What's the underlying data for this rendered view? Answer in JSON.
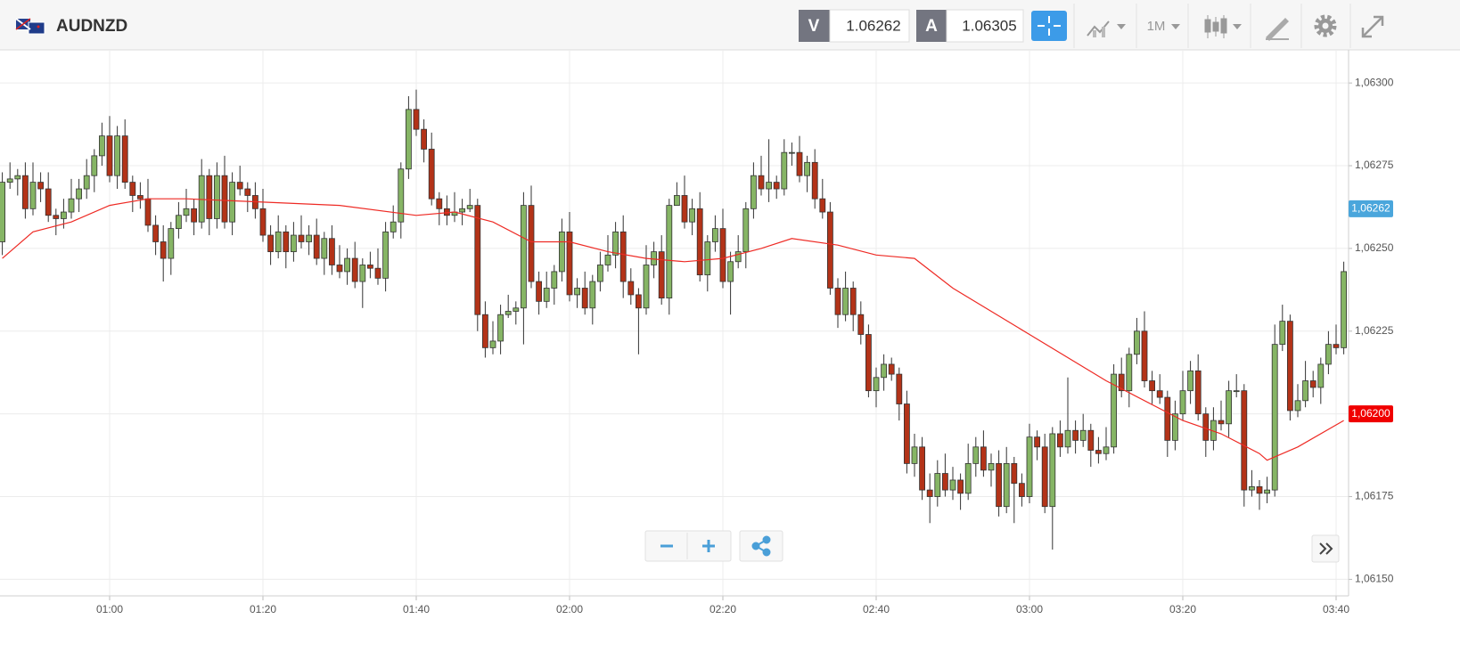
{
  "header": {
    "symbol": "AUDNZD",
    "bid_label": "V",
    "bid": 1.06262,
    "ask_label": "A",
    "ask": 1.06305,
    "timeframe": "1M"
  },
  "chart_data": {
    "type": "candlestick",
    "x": [
      "00:46",
      "00:47",
      "00:48",
      "00:49",
      "00:50",
      "00:51",
      "00:52",
      "00:53",
      "00:54",
      "00:55",
      "00:56",
      "00:57",
      "00:58",
      "00:59",
      "01:00",
      "01:01",
      "01:02",
      "01:03",
      "01:04",
      "01:05",
      "01:06",
      "01:07",
      "01:08",
      "01:09",
      "01:10",
      "01:11",
      "01:12",
      "01:13",
      "01:14",
      "01:15",
      "01:16",
      "01:17",
      "01:18",
      "01:19",
      "01:20",
      "01:21",
      "01:22",
      "01:23",
      "01:24",
      "01:25",
      "01:26",
      "01:27",
      "01:28",
      "01:29",
      "01:30",
      "01:31",
      "01:32",
      "01:33",
      "01:34",
      "01:35",
      "01:36",
      "01:37",
      "01:38",
      "01:39",
      "01:40",
      "01:41",
      "01:42",
      "01:43",
      "01:44",
      "01:45",
      "01:46",
      "01:47",
      "01:48",
      "01:49",
      "01:50",
      "01:51",
      "01:52",
      "01:53",
      "01:54",
      "01:55",
      "01:56",
      "01:57",
      "01:58",
      "01:59",
      "02:00",
      "02:01",
      "02:02",
      "02:03",
      "02:04",
      "02:05",
      "02:06",
      "02:07",
      "02:08",
      "02:09",
      "02:10",
      "02:11",
      "02:12",
      "02:13",
      "02:14",
      "02:15",
      "02:16",
      "02:17",
      "02:18",
      "02:19",
      "02:20",
      "02:21",
      "02:22",
      "02:23",
      "02:24",
      "02:25",
      "02:26",
      "02:27",
      "02:28",
      "02:29",
      "02:30",
      "02:31",
      "02:32",
      "02:33",
      "02:34",
      "02:35",
      "02:36",
      "02:37",
      "02:38",
      "02:39",
      "02:40",
      "02:41",
      "02:42",
      "02:43",
      "02:44",
      "02:45",
      "02:46",
      "02:47",
      "02:48",
      "02:49",
      "02:50",
      "02:51",
      "02:52",
      "02:53",
      "02:54",
      "02:55",
      "02:56",
      "02:57",
      "02:58",
      "02:59",
      "03:00",
      "03:01",
      "03:02",
      "03:03",
      "03:04",
      "03:05",
      "03:06",
      "03:07",
      "03:08",
      "03:09",
      "03:10",
      "03:11",
      "03:12",
      "03:13",
      "03:14",
      "03:15",
      "03:16",
      "03:17",
      "03:18",
      "03:19",
      "03:20",
      "03:21",
      "03:22",
      "03:23",
      "03:24",
      "03:25",
      "03:26",
      "03:27",
      "03:28",
      "03:29",
      "03:30",
      "03:31",
      "03:32",
      "03:33",
      "03:34",
      "03:35",
      "03:36",
      "03:37",
      "03:38",
      "03:39",
      "03:40",
      "03:41"
    ],
    "open": [
      1.06252,
      1.0627,
      1.06271,
      1.06272,
      1.06262,
      1.0627,
      1.06268,
      1.0626,
      1.06259,
      1.06261,
      1.06265,
      1.06268,
      1.06272,
      1.06278,
      1.06284,
      1.06272,
      1.06284,
      1.0627,
      1.06266,
      1.06265,
      1.06257,
      1.06252,
      1.06247,
      1.06256,
      1.0626,
      1.06262,
      1.06258,
      1.06272,
      1.06259,
      1.06272,
      1.06258,
      1.0627,
      1.06268,
      1.06266,
      1.06262,
      1.06254,
      1.06249,
      1.06255,
      1.06249,
      1.06254,
      1.06252,
      1.06254,
      1.06247,
      1.06253,
      1.06245,
      1.06243,
      1.06247,
      1.0624,
      1.06245,
      1.06244,
      1.06241,
      1.06255,
      1.06258,
      1.06274,
      1.06292,
      1.06286,
      1.0628,
      1.06265,
      1.06262,
      1.0626,
      1.06261,
      1.06262,
      1.06263,
      1.0623,
      1.0622,
      1.06222,
      1.0623,
      1.06231,
      1.06232,
      1.06263,
      1.0624,
      1.06234,
      1.06238,
      1.06243,
      1.06255,
      1.06236,
      1.06238,
      1.06232,
      1.0624,
      1.06245,
      1.06248,
      1.06255,
      1.0624,
      1.06236,
      1.06232,
      1.06245,
      1.06249,
      1.06235,
      1.06263,
      1.06266,
      1.06258,
      1.06262,
      1.06242,
      1.06252,
      1.06256,
      1.0624,
      1.06246,
      1.06249,
      1.06262,
      1.06272,
      1.06268,
      1.0627,
      1.06268,
      1.06279,
      1.06279,
      1.06272,
      1.06276,
      1.06265,
      1.06261,
      1.06238,
      1.0623,
      1.06238,
      1.0623,
      1.06224,
      1.06207,
      1.06211,
      1.06215,
      1.06212,
      1.06203,
      1.06185,
      1.0619,
      1.06177,
      1.06175,
      1.06182,
      1.06177,
      1.0618,
      1.06176,
      1.06185,
      1.0619,
      1.06183,
      1.06185,
      1.06172,
      1.06185,
      1.06179,
      1.06175,
      1.06193,
      1.0619,
      1.06172,
      1.06194,
      1.0619,
      1.06195,
      1.06192,
      1.06195,
      1.06189,
      1.06188,
      1.0619,
      1.06212,
      1.06207,
      1.06218,
      1.06225,
      1.0621,
      1.06207,
      1.06205,
      1.06192,
      1.062,
      1.06207,
      1.06213,
      1.062,
      1.06192,
      1.06198,
      1.06197,
      1.06207,
      1.06207,
      1.06177,
      1.06178,
      1.06176,
      1.06177,
      1.06221,
      1.06228,
      1.06201,
      1.06204,
      1.0621,
      1.06208,
      1.06215,
      1.06221,
      1.0622
    ],
    "high": [
      1.06273,
      1.06276,
      1.06274,
      1.06276,
      1.06276,
      1.06273,
      1.06273,
      1.06262,
      1.06265,
      1.06271,
      1.06271,
      1.06277,
      1.0628,
      1.06288,
      1.0629,
      1.06287,
      1.06289,
      1.06272,
      1.0627,
      1.06271,
      1.0626,
      1.06257,
      1.06258,
      1.06264,
      1.06268,
      1.06265,
      1.06277,
      1.06274,
      1.06276,
      1.06278,
      1.06273,
      1.06275,
      1.0627,
      1.0627,
      1.06268,
      1.06257,
      1.0626,
      1.06257,
      1.06258,
      1.0626,
      1.06257,
      1.06259,
      1.06255,
      1.06257,
      1.06251,
      1.0625,
      1.06252,
      1.06247,
      1.06249,
      1.0625,
      1.06258,
      1.06263,
      1.06276,
      1.06296,
      1.06298,
      1.06289,
      1.06285,
      1.06267,
      1.06266,
      1.06267,
      1.06265,
      1.06268,
      1.06265,
      1.06234,
      1.06228,
      1.06233,
      1.06236,
      1.06234,
      1.06267,
      1.06269,
      1.06243,
      1.06243,
      1.06245,
      1.06259,
      1.06261,
      1.06241,
      1.06243,
      1.06242,
      1.06249,
      1.06254,
      1.06258,
      1.0626,
      1.06244,
      1.06238,
      1.06251,
      1.06252,
      1.06254,
      1.06265,
      1.0627,
      1.06272,
      1.06265,
      1.06267,
      1.06254,
      1.0626,
      1.06262,
      1.06249,
      1.06254,
      1.06264,
      1.06276,
      1.06278,
      1.06283,
      1.06272,
      1.06283,
      1.06282,
      1.06284,
      1.06278,
      1.0628,
      1.06271,
      1.06264,
      1.06241,
      1.06243,
      1.0624,
      1.06234,
      1.06227,
      1.06214,
      1.06218,
      1.06217,
      1.06214,
      1.06207,
      1.06194,
      1.06193,
      1.06182,
      1.06186,
      1.06188,
      1.06184,
      1.06182,
      1.06191,
      1.06193,
      1.06195,
      1.06188,
      1.06189,
      1.0619,
      1.06187,
      1.06182,
      1.06197,
      1.06195,
      1.06194,
      1.06196,
      1.06198,
      1.06211,
      1.06198,
      1.062,
      1.06197,
      1.06193,
      1.06196,
      1.06215,
      1.06217,
      1.0622,
      1.06229,
      1.06231,
      1.06213,
      1.06212,
      1.06207,
      1.06204,
      1.06213,
      1.06216,
      1.06218,
      1.06202,
      1.06202,
      1.06204,
      1.0621,
      1.06212,
      1.06209,
      1.06183,
      1.0618,
      1.06181,
      1.06227,
      1.06233,
      1.0623,
      1.06209,
      1.06216,
      1.06213,
      1.06217,
      1.06225,
      1.06227,
      1.06246
    ],
    "low": [
      1.06248,
      1.06268,
      1.06266,
      1.06259,
      1.0626,
      1.06264,
      1.06258,
      1.06254,
      1.06256,
      1.06259,
      1.06261,
      1.06265,
      1.06267,
      1.06275,
      1.0627,
      1.06268,
      1.06268,
      1.06261,
      1.06262,
      1.06255,
      1.06248,
      1.0624,
      1.06242,
      1.06253,
      1.06258,
      1.06254,
      1.06256,
      1.06254,
      1.06256,
      1.06256,
      1.06254,
      1.06266,
      1.06261,
      1.06259,
      1.06252,
      1.06245,
      1.06247,
      1.06244,
      1.06246,
      1.0625,
      1.06248,
      1.06245,
      1.06242,
      1.06242,
      1.06241,
      1.06239,
      1.06238,
      1.06232,
      1.06241,
      1.06239,
      1.06237,
      1.06253,
      1.06253,
      1.06271,
      1.06284,
      1.06276,
      1.06263,
      1.06257,
      1.06257,
      1.06258,
      1.06257,
      1.06261,
      1.06225,
      1.06217,
      1.06218,
      1.06218,
      1.06229,
      1.06227,
      1.06221,
      1.06238,
      1.0623,
      1.06232,
      1.06233,
      1.0624,
      1.06234,
      1.06232,
      1.0623,
      1.06227,
      1.06237,
      1.06243,
      1.06244,
      1.06235,
      1.06233,
      1.06218,
      1.0623,
      1.06241,
      1.06233,
      1.0623,
      1.06263,
      1.06256,
      1.06254,
      1.0624,
      1.06237,
      1.06249,
      1.06238,
      1.0623,
      1.06244,
      1.06244,
      1.06259,
      1.06266,
      1.06264,
      1.06265,
      1.06266,
      1.06275,
      1.0627,
      1.06267,
      1.06262,
      1.06259,
      1.06236,
      1.06226,
      1.06228,
      1.06225,
      1.06221,
      1.06205,
      1.06202,
      1.06207,
      1.0621,
      1.06198,
      1.06182,
      1.06181,
      1.06174,
      1.06167,
      1.06172,
      1.06175,
      1.06174,
      1.06171,
      1.06174,
      1.06181,
      1.06181,
      1.06178,
      1.06169,
      1.0617,
      1.06167,
      1.06172,
      1.06173,
      1.06186,
      1.0617,
      1.06159,
      1.06187,
      1.06188,
      1.06188,
      1.0619,
      1.06184,
      1.06185,
      1.06186,
      1.06188,
      1.06205,
      1.06202,
      1.06215,
      1.06208,
      1.06203,
      1.06203,
      1.06187,
      1.06189,
      1.06198,
      1.06203,
      1.06198,
      1.06187,
      1.06189,
      1.06195,
      1.06193,
      1.06205,
      1.06172,
      1.06175,
      1.06171,
      1.06173,
      1.06175,
      1.06219,
      1.06198,
      1.06199,
      1.06202,
      1.06205,
      1.06203,
      1.06212,
      1.06218,
      1.06218
    ],
    "close": [
      1.0627,
      1.06271,
      1.06272,
      1.06262,
      1.0627,
      1.06268,
      1.0626,
      1.06259,
      1.06261,
      1.06265,
      1.06268,
      1.06272,
      1.06278,
      1.06284,
      1.06272,
      1.06284,
      1.0627,
      1.06266,
      1.06265,
      1.06257,
      1.06252,
      1.06247,
      1.06256,
      1.0626,
      1.06262,
      1.06258,
      1.06272,
      1.06259,
      1.06272,
      1.06258,
      1.0627,
      1.06268,
      1.06266,
      1.06262,
      1.06254,
      1.06249,
      1.06255,
      1.06249,
      1.06254,
      1.06252,
      1.06254,
      1.06247,
      1.06253,
      1.06245,
      1.06243,
      1.06247,
      1.0624,
      1.06245,
      1.06244,
      1.06241,
      1.06255,
      1.06258,
      1.06274,
      1.06292,
      1.06286,
      1.0628,
      1.06265,
      1.06262,
      1.0626,
      1.06261,
      1.06262,
      1.06263,
      1.0623,
      1.0622,
      1.06222,
      1.0623,
      1.06231,
      1.06232,
      1.06263,
      1.0624,
      1.06234,
      1.06238,
      1.06243,
      1.06255,
      1.06236,
      1.06238,
      1.06232,
      1.0624,
      1.06245,
      1.06248,
      1.06255,
      1.0624,
      1.06236,
      1.06232,
      1.06245,
      1.06249,
      1.06235,
      1.06263,
      1.06266,
      1.06258,
      1.06262,
      1.06242,
      1.06252,
      1.06256,
      1.0624,
      1.06246,
      1.06249,
      1.06262,
      1.06272,
      1.06268,
      1.0627,
      1.06268,
      1.06279,
      1.06279,
      1.06272,
      1.06276,
      1.06265,
      1.06261,
      1.06238,
      1.0623,
      1.06238,
      1.0623,
      1.06224,
      1.06207,
      1.06211,
      1.06215,
      1.06212,
      1.06203,
      1.06185,
      1.0619,
      1.06177,
      1.06175,
      1.06182,
      1.06177,
      1.0618,
      1.06176,
      1.06185,
      1.0619,
      1.06183,
      1.06185,
      1.06172,
      1.06185,
      1.06179,
      1.06175,
      1.06193,
      1.0619,
      1.06172,
      1.06194,
      1.0619,
      1.06195,
      1.06192,
      1.06195,
      1.06189,
      1.06188,
      1.0619,
      1.06212,
      1.06207,
      1.06218,
      1.06225,
      1.0621,
      1.06207,
      1.06205,
      1.06192,
      1.062,
      1.06207,
      1.06213,
      1.062,
      1.06192,
      1.06198,
      1.06197,
      1.06207,
      1.06207,
      1.06177,
      1.06178,
      1.06176,
      1.06177,
      1.06221,
      1.06228,
      1.06201,
      1.06204,
      1.0621,
      1.06208,
      1.06215,
      1.06221,
      1.0622,
      1.06243
    ],
    "up_color": "#86b565",
    "down_color": "#b33318",
    "ma": {
      "color": "#ee2a24",
      "x": [
        "00:46",
        "00:50",
        "00:55",
        "01:00",
        "01:05",
        "01:10",
        "01:20",
        "01:30",
        "01:40",
        "01:45",
        "01:50",
        "01:55",
        "02:00",
        "02:05",
        "02:10",
        "02:15",
        "02:20",
        "02:25",
        "02:29",
        "02:35",
        "02:40",
        "02:45",
        "02:50",
        "03:00",
        "03:10",
        "03:20",
        "03:25",
        "03:30",
        "03:31",
        "03:35",
        "03:41"
      ],
      "values": [
        1.06247,
        1.06255,
        1.06258,
        1.06263,
        1.06265,
        1.06265,
        1.06264,
        1.06263,
        1.0626,
        1.06261,
        1.06258,
        1.06252,
        1.06252,
        1.06249,
        1.06247,
        1.06246,
        1.06247,
        1.0625,
        1.06253,
        1.06251,
        1.06248,
        1.06247,
        1.06238,
        1.06224,
        1.0621,
        1.06198,
        1.06194,
        1.06188,
        1.06186,
        1.0619,
        1.06198
      ]
    },
    "ylim": [
      1.06145,
      1.0631
    ],
    "yticks": [
      {
        "value": 1.0615,
        "label": "1,06150"
      },
      {
        "value": 1.06175,
        "label": "1,06175"
      },
      {
        "value": 1.062,
        "label": "1,06200"
      },
      {
        "value": 1.06225,
        "label": "1,06225"
      },
      {
        "value": 1.0625,
        "label": "1,06250"
      },
      {
        "value": 1.06275,
        "label": "1,06275"
      },
      {
        "value": 1.063,
        "label": "1,06300"
      }
    ],
    "xticks": [
      "01:00",
      "01:20",
      "01:40",
      "02:00",
      "02:20",
      "02:40",
      "03:00",
      "03:20",
      "03:40"
    ],
    "grid": true,
    "price_tags": [
      {
        "value": 1.06262,
        "label": "1,06262",
        "color": "#4aa6dc"
      },
      {
        "value": 1.062,
        "label": "1,06200",
        "color": "#f00000"
      }
    ]
  }
}
